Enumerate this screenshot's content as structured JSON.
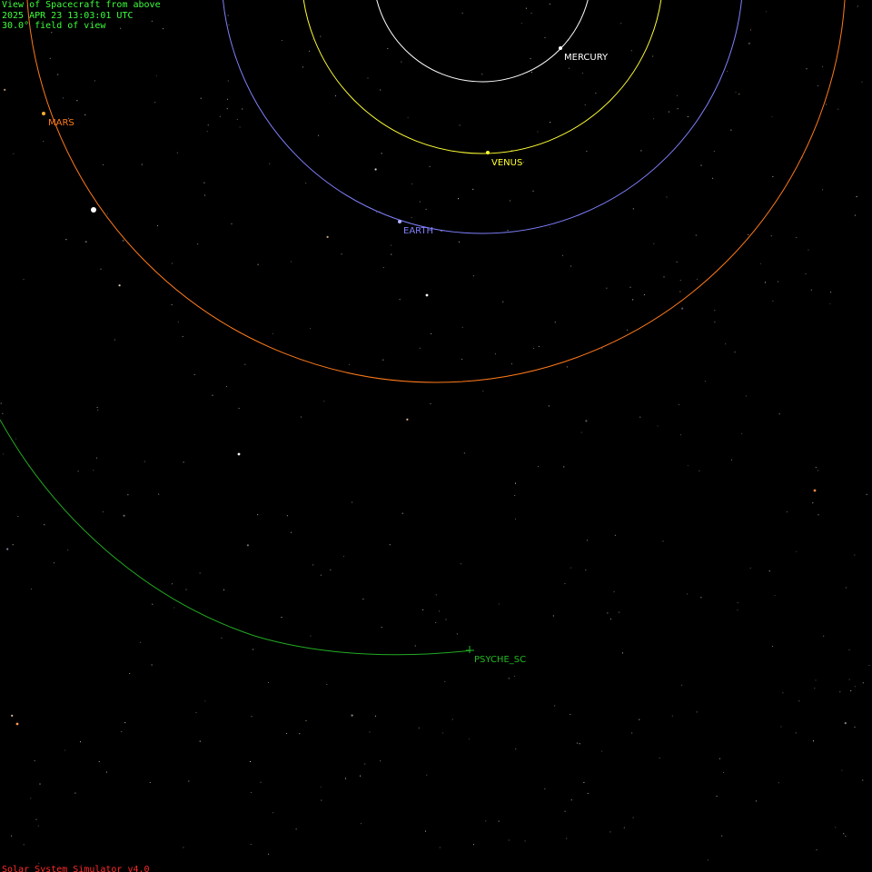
{
  "hud": {
    "line1": "View of Spacecraft from above",
    "line2": "2025 APR 23 13:03:01 UTC",
    "line3": "30.0° field of view"
  },
  "footer": {
    "version": "Solar System Simulator v4.0"
  },
  "bodies": {
    "mercury": {
      "label": "MERCURY",
      "color": "#ffffff"
    },
    "venus": {
      "label": "VENUS",
      "color": "#ffff33"
    },
    "earth": {
      "label": "EARTH",
      "color": "#8080ff"
    },
    "mars": {
      "label": "MARS",
      "color": "#ff7a1a"
    },
    "spacecraft": {
      "label": "PSYCHE_SC",
      "color": "#22bb22"
    }
  },
  "colors": {
    "background": "#000000",
    "hud_text": "#3cff3c",
    "footer_text": "#ff2a2a"
  }
}
